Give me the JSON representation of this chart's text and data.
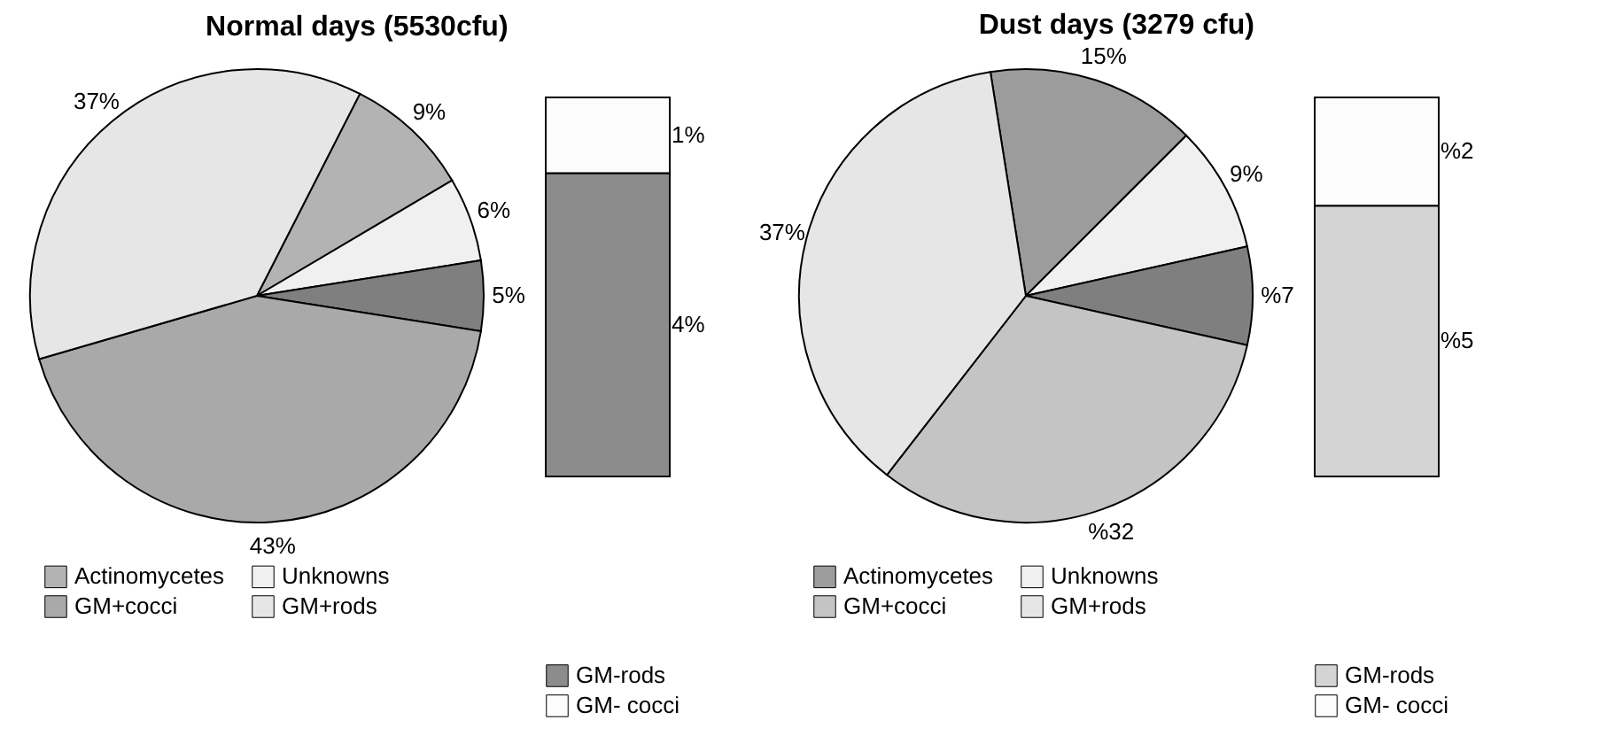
{
  "chart_data": [
    {
      "type": "pie",
      "title": "Normal days (5530cfu)",
      "categories": [
        "Actinomycetes",
        "Unknowns",
        null,
        "GM+cocci",
        "GM+rods"
      ],
      "values": [
        9,
        6,
        5,
        43,
        37
      ],
      "colors": [
        "#b3b3b3",
        "#f0f0f0",
        "#7f7f7f",
        "#a9a9a9",
        "#e6e6e6"
      ],
      "value_labels": [
        "9%",
        "6%",
        "5%",
        "43%",
        "37%"
      ],
      "legend": "bottom"
    },
    {
      "type": "bar",
      "stacked": true,
      "categories": [
        null
      ],
      "tick_labels": false,
      "legend": "bottom",
      "series": [
        {
          "name": "GM-rods",
          "color": "#8c8c8c",
          "values": [
            4
          ],
          "value_labels": [
            "4%"
          ]
        },
        {
          "name": "GM- cocci",
          "color": "#fcfcfc",
          "values": [
            1
          ],
          "value_labels": [
            "1%"
          ]
        }
      ]
    },
    {
      "type": "pie",
      "title": "Dust days (3279 cfu)",
      "categories": [
        "Actinomycetes",
        "Unknowns",
        null,
        "GM+cocci",
        "GM+rods"
      ],
      "values": [
        15,
        9,
        7,
        32,
        37
      ],
      "colors": [
        "#9c9c9c",
        "#f0f0f0",
        "#7f7f7f",
        "#c4c4c4",
        "#e6e6e6"
      ],
      "value_labels": [
        "15%",
        "9%",
        "%7",
        "%32",
        "37%"
      ],
      "legend": "bottom"
    },
    {
      "type": "bar",
      "stacked": true,
      "categories": [
        null
      ],
      "tick_labels": false,
      "legend": "bottom",
      "series": [
        {
          "name": "GM-rods",
          "color": "#d4d4d4",
          "values": [
            5
          ],
          "value_labels": [
            "%5"
          ]
        },
        {
          "name": "GM- cocci",
          "color": "#fcfcfc",
          "values": [
            2
          ],
          "value_labels": [
            "%2"
          ]
        }
      ]
    }
  ]
}
